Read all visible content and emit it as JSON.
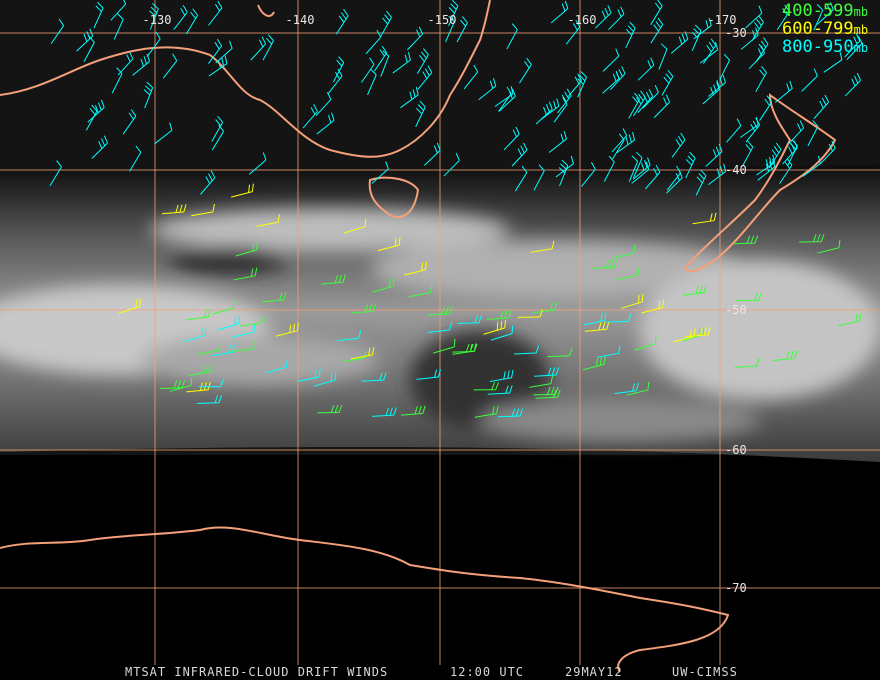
{
  "map": {
    "longitude_labels": [
      "-130",
      "-140",
      "-150",
      "-160",
      "-170"
    ],
    "latitude_labels": [
      "-30",
      "-40",
      "-50",
      "-60",
      "-70"
    ],
    "legend": [
      {
        "range": "400-599",
        "unit": "mb",
        "color": "#3cff3c"
      },
      {
        "range": "600-799",
        "unit": "mb",
        "color": "#ffff00"
      },
      {
        "range": "800-950",
        "unit": "mb",
        "color": "#00ffff"
      }
    ],
    "footer": [
      "MTSAT INFRARED-CLOUD DRIFT WINDS",
      "12:00 UTC",
      "29MAY12",
      "UW-CIMSS"
    ]
  }
}
